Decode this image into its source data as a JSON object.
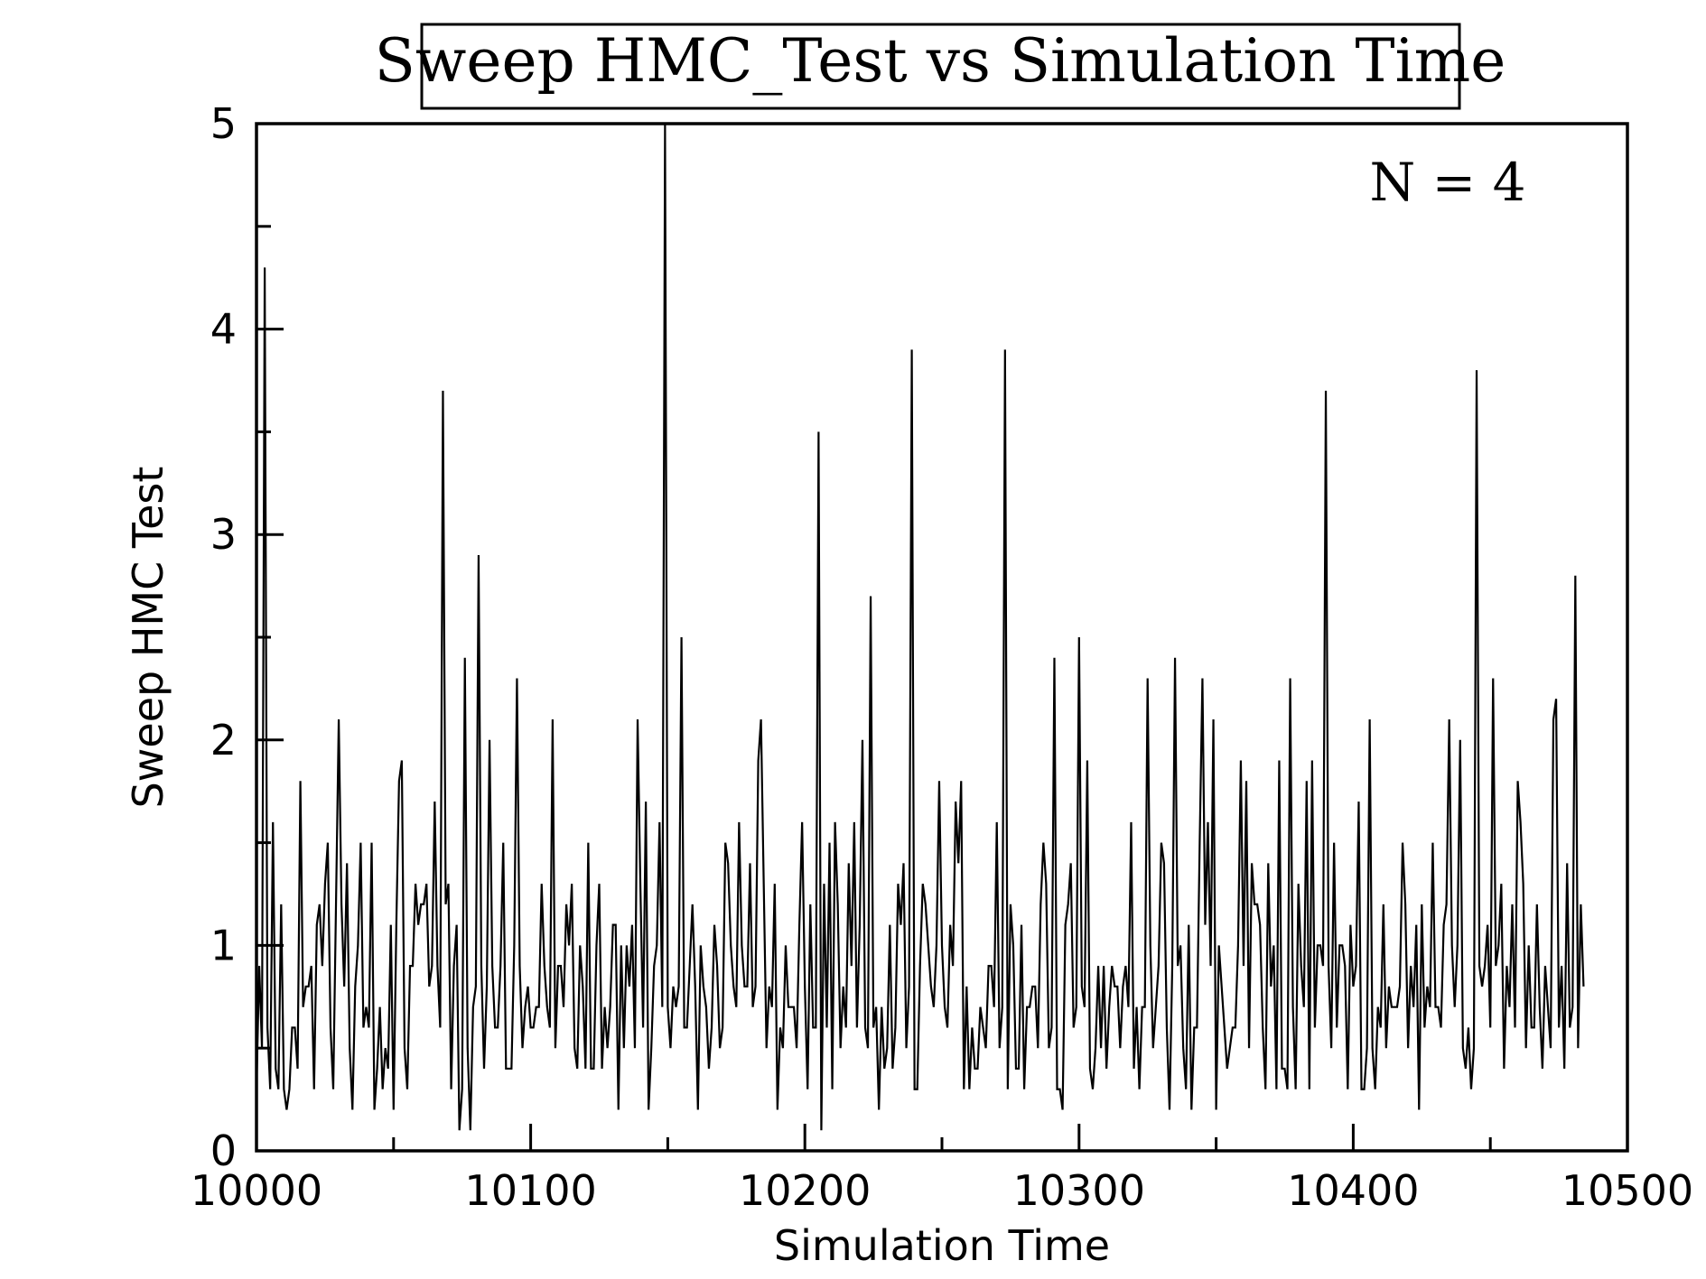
{
  "chart_data": {
    "type": "line",
    "title": "Sweep HMC_Test vs Simulation Time",
    "xlabel": "Simulation Time",
    "ylabel": "Sweep HMC Test",
    "annotation": "N = 4",
    "xlim": [
      10000,
      10500
    ],
    "ylim": [
      0,
      5
    ],
    "x_ticks": [
      10000,
      10100,
      10200,
      10300,
      10400,
      10500
    ],
    "x_tick_labels": [
      "10000",
      "10100",
      "10200",
      "10300",
      "10400",
      "10500"
    ],
    "x_minor_ticks": [
      10050,
      10150,
      10250,
      10350,
      10450
    ],
    "y_ticks": [
      0,
      1,
      2,
      3,
      4,
      5
    ],
    "y_tick_labels": [
      "0",
      "1",
      "2",
      "3",
      "4",
      "5"
    ],
    "y_minor_ticks": [
      0.5,
      1.5,
      2.5,
      3.5,
      4.5
    ],
    "grid": false,
    "legend": "none",
    "series": [
      {
        "color": "#000000",
        "x_start": 10000,
        "x_step": 1,
        "values": [
          0.3,
          0.9,
          0.5,
          4.3,
          0.6,
          0.3,
          1.6,
          0.4,
          0.3,
          1.2,
          0.3,
          0.2,
          0.3,
          0.6,
          0.6,
          0.4,
          1.8,
          0.7,
          0.8,
          0.8,
          0.9,
          0.3,
          1.1,
          1.2,
          0.9,
          1.3,
          1.5,
          0.6,
          0.3,
          1.2,
          2.1,
          1.2,
          0.8,
          1.4,
          0.5,
          0.2,
          0.8,
          1.0,
          1.5,
          0.6,
          0.7,
          0.6,
          1.5,
          0.2,
          0.4,
          0.7,
          0.3,
          0.5,
          0.4,
          1.1,
          0.2,
          1.1,
          1.8,
          1.9,
          0.5,
          0.3,
          0.9,
          0.9,
          1.3,
          1.1,
          1.2,
          1.2,
          1.3,
          0.8,
          0.9,
          1.7,
          0.9,
          0.6,
          3.7,
          1.2,
          1.3,
          0.3,
          0.9,
          1.1,
          0.1,
          0.3,
          2.4,
          0.5,
          0.1,
          0.7,
          0.8,
          2.9,
          0.9,
          0.4,
          0.8,
          2.0,
          0.9,
          0.6,
          0.6,
          0.9,
          1.5,
          0.4,
          0.4,
          0.4,
          1.0,
          2.3,
          0.9,
          0.5,
          0.7,
          0.8,
          0.6,
          0.6,
          0.7,
          0.7,
          1.3,
          0.9,
          0.7,
          0.6,
          2.1,
          0.5,
          0.9,
          0.9,
          0.7,
          1.2,
          1.0,
          1.3,
          0.5,
          0.4,
          1.0,
          0.8,
          0.4,
          1.5,
          0.4,
          0.4,
          1.0,
          1.3,
          0.4,
          0.7,
          0.5,
          0.7,
          1.1,
          1.1,
          0.2,
          1.0,
          0.5,
          1.0,
          0.8,
          1.1,
          0.5,
          2.1,
          1.3,
          0.6,
          1.7,
          0.2,
          0.5,
          0.9,
          1.0,
          1.6,
          0.7,
          5.0,
          0.7,
          0.5,
          0.8,
          0.7,
          0.8,
          2.5,
          0.6,
          0.6,
          0.9,
          1.2,
          0.8,
          0.2,
          1.0,
          0.8,
          0.7,
          0.4,
          0.6,
          1.1,
          0.9,
          0.5,
          0.6,
          1.5,
          1.4,
          1.0,
          0.8,
          0.7,
          1.6,
          1.0,
          0.8,
          0.8,
          1.4,
          0.7,
          0.8,
          1.9,
          2.1,
          1.3,
          0.5,
          0.8,
          0.7,
          1.3,
          0.2,
          0.6,
          0.5,
          1.0,
          0.7,
          0.7,
          0.7,
          0.5,
          1.1,
          1.6,
          0.8,
          0.3,
          1.2,
          0.6,
          0.6,
          3.5,
          0.1,
          1.3,
          0.6,
          1.5,
          0.3,
          1.6,
          1.2,
          0.5,
          0.8,
          0.6,
          1.4,
          0.9,
          1.6,
          0.6,
          1.1,
          2.0,
          0.6,
          0.5,
          2.7,
          0.6,
          0.7,
          0.2,
          0.7,
          0.4,
          0.5,
          1.1,
          0.4,
          0.6,
          1.3,
          1.1,
          1.4,
          0.5,
          0.8,
          3.9,
          0.3,
          0.3,
          0.9,
          1.3,
          1.2,
          1.0,
          0.8,
          0.7,
          1.0,
          1.8,
          1.0,
          0.7,
          0.6,
          1.1,
          0.9,
          1.7,
          1.4,
          1.8,
          0.3,
          0.8,
          0.3,
          0.6,
          0.4,
          0.4,
          0.7,
          0.6,
          0.5,
          0.9,
          0.9,
          0.7,
          1.6,
          0.5,
          0.7,
          3.9,
          0.3,
          1.2,
          1.0,
          0.4,
          0.4,
          1.1,
          0.3,
          0.7,
          0.7,
          0.8,
          0.8,
          0.5,
          1.2,
          1.5,
          1.3,
          0.5,
          0.6,
          2.4,
          0.3,
          0.3,
          0.2,
          1.1,
          1.2,
          1.4,
          0.6,
          0.7,
          2.5,
          0.8,
          0.7,
          1.9,
          0.4,
          0.3,
          0.5,
          0.9,
          0.5,
          0.9,
          0.4,
          0.7,
          0.9,
          0.8,
          0.8,
          0.5,
          0.8,
          0.9,
          0.7,
          1.6,
          0.4,
          0.7,
          0.3,
          0.7,
          0.7,
          2.3,
          1.0,
          0.5,
          0.7,
          0.9,
          1.5,
          1.4,
          0.6,
          0.2,
          0.9,
          2.4,
          0.9,
          1.0,
          0.5,
          0.3,
          1.1,
          0.2,
          0.6,
          0.6,
          1.5,
          2.3,
          1.1,
          1.6,
          0.9,
          2.1,
          0.2,
          1.0,
          0.8,
          0.6,
          0.4,
          0.5,
          0.6,
          0.6,
          1.0,
          1.9,
          0.9,
          1.8,
          0.5,
          1.4,
          1.2,
          1.2,
          1.1,
          0.6,
          0.3,
          1.4,
          0.8,
          1.0,
          0.3,
          1.9,
          0.4,
          0.4,
          0.3,
          2.3,
          0.7,
          0.3,
          1.3,
          0.9,
          0.7,
          1.8,
          0.3,
          1.9,
          0.6,
          1.0,
          1.0,
          0.9,
          3.7,
          0.9,
          0.5,
          1.5,
          0.6,
          1.0,
          1.0,
          0.9,
          0.3,
          1.1,
          0.8,
          0.9,
          1.7,
          0.3,
          0.3,
          0.5,
          2.1,
          0.5,
          0.3,
          0.7,
          0.6,
          1.2,
          0.5,
          0.8,
          0.7,
          0.7,
          0.7,
          0.8,
          1.5,
          1.2,
          0.5,
          0.9,
          0.7,
          1.1,
          0.2,
          1.2,
          0.6,
          0.8,
          0.7,
          1.5,
          0.7,
          0.7,
          0.6,
          1.1,
          1.2,
          2.1,
          1.0,
          0.7,
          1.0,
          2.0,
          0.5,
          0.4,
          0.6,
          0.3,
          0.5,
          3.8,
          0.9,
          0.8,
          0.9,
          1.1,
          0.6,
          2.3,
          0.9,
          1.0,
          1.3,
          0.4,
          0.9,
          0.7,
          1.2,
          0.6,
          1.8,
          1.6,
          1.3,
          0.5,
          1.0,
          0.6,
          0.6,
          1.2,
          0.7,
          0.4,
          0.9,
          0.7,
          0.5,
          2.1,
          2.2,
          0.6,
          0.9,
          0.4,
          1.4,
          0.6,
          0.7,
          2.8,
          0.5,
          1.2,
          0.8
        ]
      }
    ]
  }
}
